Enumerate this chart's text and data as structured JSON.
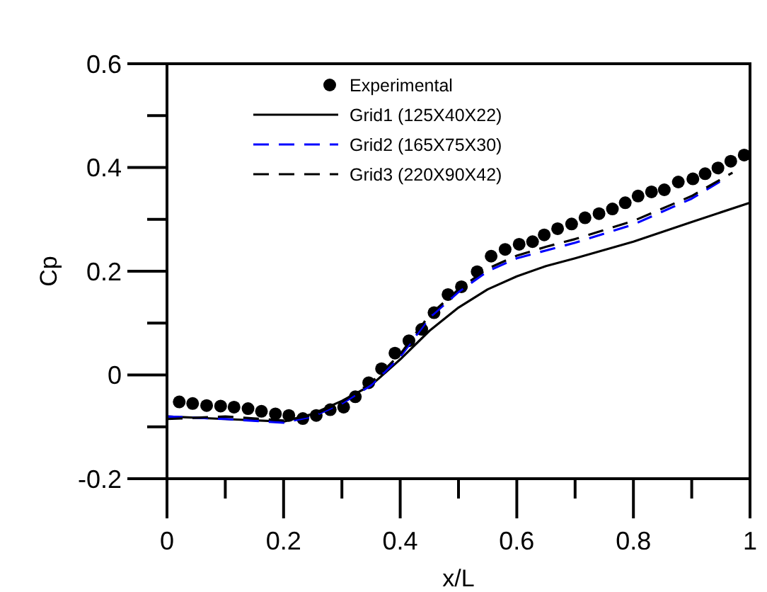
{
  "chart_data": {
    "type": "line",
    "xlabel": "x/L",
    "ylabel": "Cp",
    "xlim": [
      0,
      1
    ],
    "ylim": [
      -0.2,
      0.6
    ],
    "xticks": [
      0,
      {
        "value": 0.1,
        "label": null
      },
      0.2,
      {
        "value": 0.3,
        "label": null
      },
      0.4,
      {
        "value": 0.5,
        "label": null
      },
      0.6,
      {
        "value": 0.7,
        "label": null
      },
      0.8,
      {
        "value": 0.9,
        "label": null
      },
      1
    ],
    "yticks": [
      -0.2,
      {
        "value": -0.1,
        "label": null
      },
      0,
      {
        "value": 0.1,
        "label": null
      },
      0.2,
      {
        "value": 0.3,
        "label": null
      },
      0.4,
      {
        "value": 0.5,
        "label": null
      },
      0.6
    ],
    "grid": false,
    "legend": "top left",
    "series": [
      {
        "name": "Experimental",
        "type": "scatter",
        "marker": "circle",
        "color": "#000000",
        "x": [
          0.021,
          0.044,
          0.068,
          0.092,
          0.115,
          0.139,
          0.162,
          0.186,
          0.209,
          0.233,
          0.256,
          0.28,
          0.303,
          0.323,
          0.346,
          0.368,
          0.391,
          0.415,
          0.437,
          0.458,
          0.482,
          0.505,
          0.532,
          0.556,
          0.58,
          0.604,
          0.627,
          0.647,
          0.67,
          0.694,
          0.717,
          0.741,
          0.764,
          0.786,
          0.808,
          0.831,
          0.853,
          0.877,
          0.902,
          0.923,
          0.945,
          0.967,
          0.99
        ],
        "values": [
          -0.052,
          -0.055,
          -0.059,
          -0.06,
          -0.062,
          -0.065,
          -0.07,
          -0.075,
          -0.078,
          -0.084,
          -0.078,
          -0.067,
          -0.062,
          -0.042,
          -0.015,
          0.012,
          0.042,
          0.066,
          0.088,
          0.12,
          0.155,
          0.17,
          0.199,
          0.229,
          0.242,
          0.252,
          0.257,
          0.27,
          0.282,
          0.291,
          0.303,
          0.311,
          0.32,
          0.332,
          0.345,
          0.353,
          0.357,
          0.372,
          0.378,
          0.388,
          0.399,
          0.412,
          0.424
        ]
      },
      {
        "name": "Grid1 (125X40X22)",
        "type": "line",
        "marker": "none",
        "line_style": "solid",
        "color": "#000000",
        "x": [
          0,
          0.1,
          0.2,
          0.25,
          0.3,
          0.35,
          0.4,
          0.45,
          0.5,
          0.55,
          0.6,
          0.65,
          0.7,
          0.8,
          0.9,
          1
        ],
        "values": [
          -0.08,
          -0.085,
          -0.09,
          -0.075,
          -0.05,
          -0.02,
          0.03,
          0.085,
          0.13,
          0.165,
          0.19,
          0.21,
          0.225,
          0.257,
          0.295,
          0.332
        ]
      },
      {
        "name": "Grid2 (165X75X30)",
        "type": "line",
        "marker": "none",
        "line_style": "dashed",
        "color": "#0000ff",
        "x": [
          0,
          0.1,
          0.2,
          0.25,
          0.3,
          0.35,
          0.4,
          0.45,
          0.5,
          0.55,
          0.6,
          0.65,
          0.7,
          0.8,
          0.9,
          0.95
        ],
        "values": [
          -0.08,
          -0.085,
          -0.092,
          -0.08,
          -0.055,
          -0.02,
          0.035,
          0.11,
          0.16,
          0.2,
          0.225,
          0.24,
          0.255,
          0.29,
          0.34,
          0.374
        ]
      },
      {
        "name": "Grid3 (220X90X42)",
        "type": "line",
        "marker": "none",
        "line_style": "dashed",
        "color": "#000000",
        "x": [
          0,
          0.1,
          0.2,
          0.25,
          0.3,
          0.35,
          0.4,
          0.45,
          0.5,
          0.55,
          0.6,
          0.65,
          0.7,
          0.8,
          0.9,
          0.97
        ],
        "values": [
          -0.085,
          -0.08,
          -0.088,
          -0.078,
          -0.052,
          -0.015,
          0.04,
          0.115,
          0.165,
          0.205,
          0.23,
          0.247,
          0.262,
          0.297,
          0.345,
          0.39
        ]
      }
    ]
  }
}
